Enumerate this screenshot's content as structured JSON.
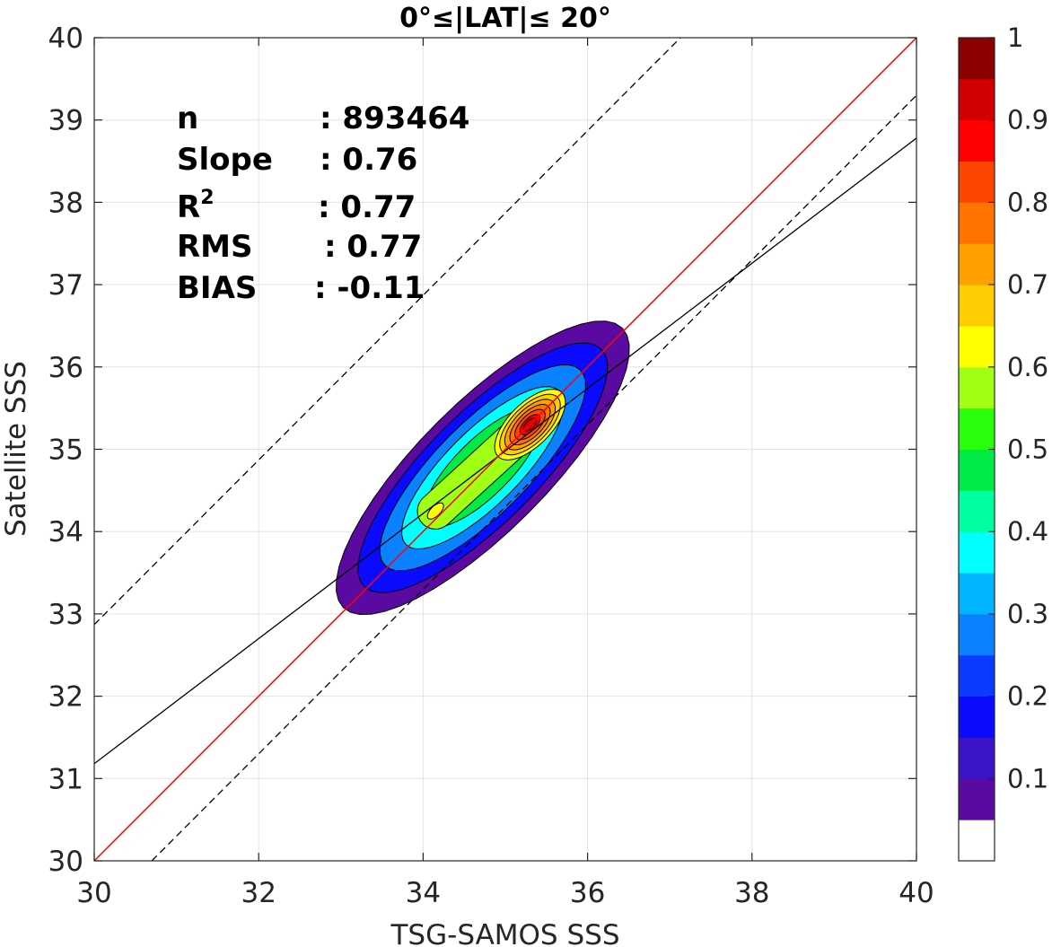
{
  "chart_data": {
    "type": "contour-density",
    "title": "0°≤|LAT|≤ 20°",
    "xlabel": "TSG-SAMOS SSS",
    "ylabel": "Satellite SSS",
    "xlim": [
      30,
      40
    ],
    "ylim": [
      30,
      40
    ],
    "xticks": [
      30,
      32,
      34,
      36,
      38,
      40
    ],
    "yticks": [
      30,
      31,
      32,
      33,
      34,
      35,
      36,
      37,
      38,
      39,
      40
    ],
    "grid": true,
    "stats": [
      {
        "label": "n",
        "value": ": 893464"
      },
      {
        "label": "Slope",
        "value": ": 0.76"
      },
      {
        "label": "R",
        "sup": "2",
        "value": ": 0.77"
      },
      {
        "label": "RMS",
        "value": ": 0.77"
      },
      {
        "label": "BIAS",
        "value": ": -0.11"
      }
    ],
    "lines": {
      "one_to_one": {
        "slope": 1,
        "intercept": 0,
        "color": "#ff0000"
      },
      "fit": {
        "slope": 0.76,
        "x0": 30,
        "y0": 31.18,
        "color": "#000000"
      },
      "upper_bound": {
        "slope": 1,
        "x0": 30,
        "y0": 32.87,
        "style": "dashed"
      },
      "lower_bound": {
        "slope": 1,
        "x0": 30.7,
        "y0": 30,
        "style": "dashed"
      }
    },
    "density_peaks": [
      {
        "x": 35.3,
        "y": 35.3,
        "level": 0.95
      },
      {
        "x": 34.15,
        "y": 34.25,
        "level": 0.68
      }
    ],
    "colorbar": {
      "range": [
        0,
        1
      ],
      "tick_labels": [
        "0.1",
        "0.2",
        "0.3",
        "0.4",
        "0.5",
        "0.6",
        "0.7",
        "0.8",
        "0.9",
        "1"
      ],
      "tick_values": [
        0.1,
        0.2,
        0.3,
        0.4,
        0.5,
        0.6,
        0.7,
        0.8,
        0.9,
        1.0
      ],
      "levels": [
        {
          "from": 0.0,
          "to": 0.05,
          "color": "#ffffff"
        },
        {
          "from": 0.05,
          "to": 0.1,
          "color": "#5a0aa0"
        },
        {
          "from": 0.1,
          "to": 0.15,
          "color": "#3c14c8"
        },
        {
          "from": 0.15,
          "to": 0.2,
          "color": "#0a0aff"
        },
        {
          "from": 0.2,
          "to": 0.25,
          "color": "#0a3cff"
        },
        {
          "from": 0.25,
          "to": 0.3,
          "color": "#0a82ff"
        },
        {
          "from": 0.3,
          "to": 0.35,
          "color": "#00b4ff"
        },
        {
          "from": 0.35,
          "to": 0.4,
          "color": "#00ffff"
        },
        {
          "from": 0.4,
          "to": 0.45,
          "color": "#00ffa0"
        },
        {
          "from": 0.45,
          "to": 0.5,
          "color": "#00eb46"
        },
        {
          "from": 0.5,
          "to": 0.55,
          "color": "#28ff0a"
        },
        {
          "from": 0.55,
          "to": 0.6,
          "color": "#a0ff14"
        },
        {
          "from": 0.6,
          "to": 0.65,
          "color": "#ffff00"
        },
        {
          "from": 0.65,
          "to": 0.7,
          "color": "#ffcd00"
        },
        {
          "from": 0.7,
          "to": 0.75,
          "color": "#ffa000"
        },
        {
          "from": 0.75,
          "to": 0.8,
          "color": "#ff7300"
        },
        {
          "from": 0.8,
          "to": 0.85,
          "color": "#ff4600"
        },
        {
          "from": 0.85,
          "to": 0.9,
          "color": "#ff0000"
        },
        {
          "from": 0.9,
          "to": 0.95,
          "color": "#d20000"
        },
        {
          "from": 0.95,
          "to": 1.0,
          "color": "#8c0000"
        }
      ]
    }
  }
}
